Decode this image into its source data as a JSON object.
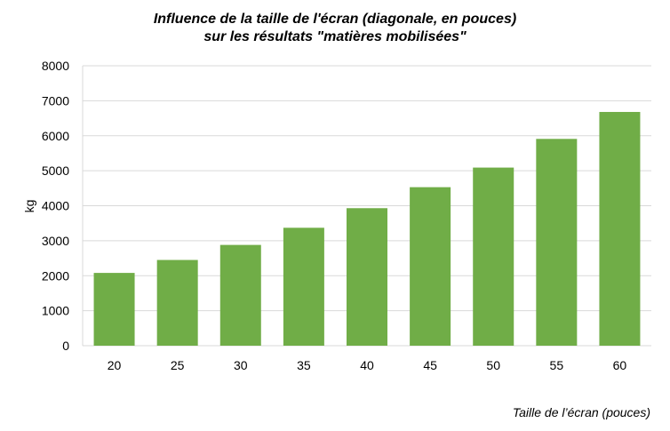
{
  "chart_data": {
    "type": "bar",
    "title_line1": "Influence de la taille de l'écran (diagonale, en pouces)",
    "title_line2": "sur les résultats \"matières mobilisées\"",
    "xlabel": "Taille de l’écran (pouces)",
    "ylabel": "kg",
    "categories": [
      "20",
      "25",
      "30",
      "35",
      "40",
      "45",
      "50",
      "55",
      "60"
    ],
    "values": [
      2080,
      2450,
      2880,
      3370,
      3930,
      4530,
      5090,
      5910,
      6680
    ],
    "ylim": [
      0,
      8000
    ],
    "yticks": [
      0,
      1000,
      2000,
      3000,
      4000,
      5000,
      6000,
      7000,
      8000
    ],
    "grid": true,
    "bar_color": "#70ad47",
    "grid_color": "#d9d9d9"
  }
}
